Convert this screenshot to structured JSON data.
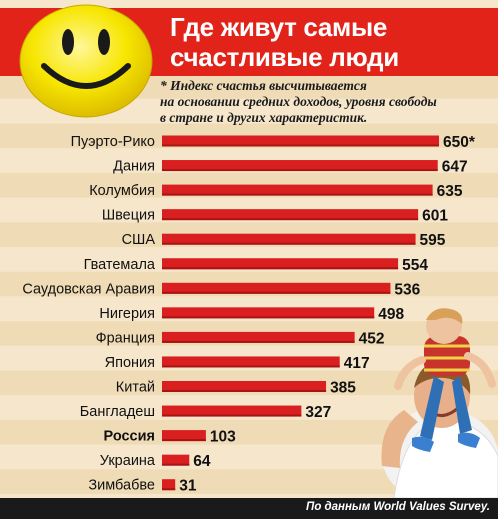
{
  "header": {
    "title_line1": "Где живут самые",
    "title_line2": "счастливые люди"
  },
  "note": {
    "line1": "* Индекс счастья высчитывается",
    "line2": "на основании средних доходов, уровня свободы",
    "line3": "в стране и других характеристик."
  },
  "footer": {
    "source": "По данным World Values Survey."
  },
  "colors": {
    "bar": "#d91f1f",
    "header_bg": "#e2231a",
    "stripe_light": "#f6e7cc",
    "stripe_dark": "#efdcb7",
    "smiley": "#f7e600"
  },
  "icons": {
    "smiley": "smiley-face-icon",
    "photo": "father-and-child-photo"
  },
  "chart_data": {
    "type": "bar",
    "orientation": "horizontal",
    "categories": [
      "Пуэрто-Рико",
      "Дания",
      "Колумбия",
      "Швеция",
      "США",
      "Гватемала",
      "Саудовская Аравия",
      "Нигерия",
      "Франция",
      "Япония",
      "Китай",
      "Бангладеш",
      "Россия",
      "Украина",
      "Зимбабве"
    ],
    "values": [
      650,
      647,
      635,
      601,
      595,
      554,
      536,
      498,
      452,
      417,
      385,
      327,
      103,
      64,
      31
    ],
    "value_labels": [
      "650*",
      "647",
      "635",
      "601",
      "595",
      "554",
      "536",
      "498",
      "452",
      "417",
      "385",
      "327",
      "103",
      "64",
      "31"
    ],
    "highlighted_category": "Россия",
    "xlim": [
      0,
      650
    ],
    "grid": false,
    "legend": "none",
    "title": "Где живут самые счастливые люди"
  }
}
